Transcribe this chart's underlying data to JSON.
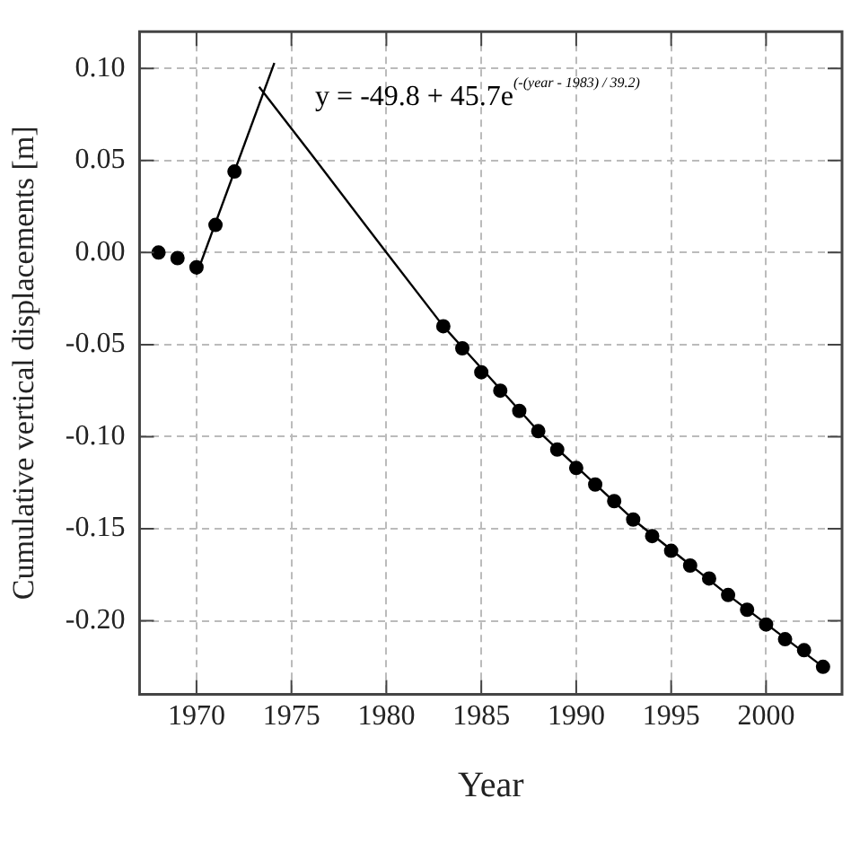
{
  "chart_data": {
    "type": "scatter",
    "xlabel": "Year",
    "ylabel": "Cumulative vertical displacements [m]",
    "xlim": [
      1967,
      2004
    ],
    "xticks": [
      1970,
      1975,
      1980,
      1985,
      1990,
      1995,
      2000
    ],
    "ylim": [
      -0.24,
      0.12
    ],
    "yticks": [
      {
        "value": 0.1,
        "label": "0.10"
      },
      {
        "value": 0.05,
        "label": "0.05"
      },
      {
        "value": 0,
        "label": "0.00"
      },
      {
        "value": -0.05,
        "label": "-0.05"
      },
      {
        "value": -0.1,
        "label": "-0.10"
      },
      {
        "value": -0.15,
        "label": "-0.15"
      },
      {
        "value": -0.2,
        "label": "-0.20"
      }
    ],
    "grid": true,
    "marker": "circle",
    "annotations": [
      "y = -49.8 + 45.7e$^{(-(year - 1983) / 39.2)}$"
    ],
    "series": [
      {
        "type": "scatter",
        "color": "#000000",
        "x": [
          1968,
          1969,
          1970,
          1971,
          1972,
          1983,
          1984,
          1985,
          1986,
          1987,
          1988,
          1989,
          1990,
          1991,
          1992,
          1993,
          1994,
          1995,
          1996,
          1997,
          1998,
          1999,
          2000,
          2001,
          2002,
          2003
        ],
        "values": [
          0,
          -0.003,
          -0.008,
          0.015,
          0.044,
          -0.04,
          -0.052,
          -0.065,
          -0.075,
          -0.086,
          -0.097,
          -0.107,
          -0.117,
          -0.126,
          -0.135,
          -0.145,
          -0.154,
          -0.162,
          -0.17,
          -0.177,
          -0.186,
          -0.194,
          -0.202,
          -0.21,
          -0.216,
          -0.225
        ]
      },
      {
        "type": "line",
        "color": "#000000",
        "marker": "none",
        "x": [
          1970,
          1974.1
        ],
        "values": [
          -0.012,
          0.103
        ]
      },
      {
        "type": "line",
        "color": "#000000",
        "marker": "none",
        "x": [
          1973.3,
          1976,
          1980,
          1983,
          1988,
          1993,
          1998,
          2003
        ],
        "values": [
          0.09,
          0.054,
          0.0,
          -0.04,
          -0.097,
          -0.145,
          -0.186,
          -0.225
        ]
      }
    ]
  }
}
